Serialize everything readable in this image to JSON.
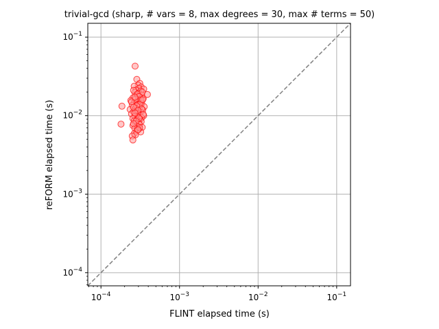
{
  "chart_data": {
    "type": "scatter",
    "title": "trivial-gcd (sharp, # vars = 8, max degrees = 30, max # terms = 50)",
    "xlabel": "FLINT elapsed time (s)",
    "ylabel": "reFORM elapsed time (s)",
    "xscale": "log",
    "yscale": "log",
    "xlim": [
      6.8e-05,
      0.15
    ],
    "ylim": [
      6.8e-05,
      0.15
    ],
    "grid": true,
    "x_ticks": [
      {
        "value": 0.0001,
        "mantissa": "10",
        "exponent": "−4"
      },
      {
        "value": 0.001,
        "mantissa": "10",
        "exponent": "−3"
      },
      {
        "value": 0.01,
        "mantissa": "10",
        "exponent": "−2"
      },
      {
        "value": 0.1,
        "mantissa": "10",
        "exponent": "−1"
      }
    ],
    "y_ticks": [
      {
        "value": 0.0001,
        "mantissa": "10",
        "exponent": "−4"
      },
      {
        "value": 0.001,
        "mantissa": "10",
        "exponent": "−3"
      },
      {
        "value": 0.01,
        "mantissa": "10",
        "exponent": "−2"
      },
      {
        "value": 0.1,
        "mantissa": "10",
        "exponent": "−1"
      }
    ],
    "reference_line": {
      "style": "dashed",
      "color": "#808080",
      "from": [
        6.8e-05,
        6.8e-05
      ],
      "to": [
        0.15,
        0.15
      ]
    },
    "marker": {
      "edge_color": "#ff0000",
      "face_color": "#ff9999",
      "alpha": 0.55
    },
    "points": [
      [
        0.000272,
        0.0427
      ],
      [
        0.000286,
        0.029
      ],
      [
        0.000312,
        0.0258
      ],
      [
        0.000298,
        0.0245
      ],
      [
        0.000265,
        0.0237
      ],
      [
        0.000325,
        0.0232
      ],
      [
        0.000305,
        0.0222
      ],
      [
        0.00035,
        0.0218
      ],
      [
        0.00028,
        0.0212
      ],
      [
        0.00032,
        0.0205
      ],
      [
        0.00027,
        0.0198
      ],
      [
        0.0003,
        0.0192
      ],
      [
        0.00039,
        0.0186
      ],
      [
        0.00033,
        0.0182
      ],
      [
        0.00029,
        0.0178
      ],
      [
        0.00031,
        0.0172
      ],
      [
        0.000255,
        0.0168
      ],
      [
        0.000345,
        0.0165
      ],
      [
        0.0003,
        0.016
      ],
      [
        0.00024,
        0.0156
      ],
      [
        0.00032,
        0.0152
      ],
      [
        0.00028,
        0.0148
      ],
      [
        0.000265,
        0.0145
      ],
      [
        0.00033,
        0.0142
      ],
      [
        0.000295,
        0.0138
      ],
      [
        0.00025,
        0.0135
      ],
      [
        0.000185,
        0.0132
      ],
      [
        0.000355,
        0.013
      ],
      [
        0.00031,
        0.0127
      ],
      [
        0.000275,
        0.0124
      ],
      [
        0.000235,
        0.012
      ],
      [
        0.00034,
        0.0118
      ],
      [
        0.0003,
        0.0115
      ],
      [
        0.00026,
        0.0112
      ],
      [
        0.00032,
        0.011
      ],
      [
        0.00028,
        0.0107
      ],
      [
        0.000245,
        0.0105
      ],
      [
        0.00031,
        0.0102
      ],
      [
        0.00035,
        0.01
      ],
      [
        0.00027,
        0.0098
      ],
      [
        0.000295,
        0.0096
      ],
      [
        0.00033,
        0.0094
      ],
      [
        0.000255,
        0.0092
      ],
      [
        0.000315,
        0.009
      ],
      [
        0.000285,
        0.0088
      ],
      [
        0.000265,
        0.0086
      ],
      [
        0.000325,
        0.0084
      ],
      [
        0.0003,
        0.0082
      ],
      [
        0.00018,
        0.0078
      ],
      [
        0.000275,
        0.008
      ],
      [
        0.00031,
        0.0077
      ],
      [
        0.000255,
        0.0075
      ],
      [
        0.00029,
        0.0073
      ],
      [
        0.000335,
        0.0071
      ],
      [
        0.00027,
        0.0069
      ],
      [
        0.0003,
        0.0067
      ],
      [
        0.000285,
        0.0064
      ],
      [
        0.00032,
        0.0062
      ],
      [
        0.000265,
        0.0059
      ],
      [
        0.000275,
        0.0057
      ],
      [
        0.00025,
        0.0055
      ],
      [
        0.000255,
        0.0049
      ],
      [
        0.00026,
        0.021
      ],
      [
        0.000335,
        0.02
      ],
      [
        0.00029,
        0.0188
      ],
      [
        0.000305,
        0.0175
      ],
      [
        0.000275,
        0.0163
      ],
      [
        0.000325,
        0.0158
      ],
      [
        0.000245,
        0.015
      ],
      [
        0.000315,
        0.014
      ],
      [
        0.000285,
        0.0133
      ],
      [
        0.00026,
        0.0128
      ],
      [
        0.00033,
        0.0122
      ],
      [
        0.000295,
        0.0117
      ],
      [
        0.00027,
        0.0108
      ],
      [
        0.000345,
        0.0104
      ],
      [
        0.000305,
        0.0093
      ],
      [
        0.00028,
        0.0085
      ],
      [
        0.00026,
        0.0079
      ],
      [
        0.00031,
        0.007
      ],
      [
        0.000295,
        0.0066
      ],
      [
        0.00034,
        0.016
      ],
      [
        0.00027,
        0.0172
      ]
    ]
  }
}
